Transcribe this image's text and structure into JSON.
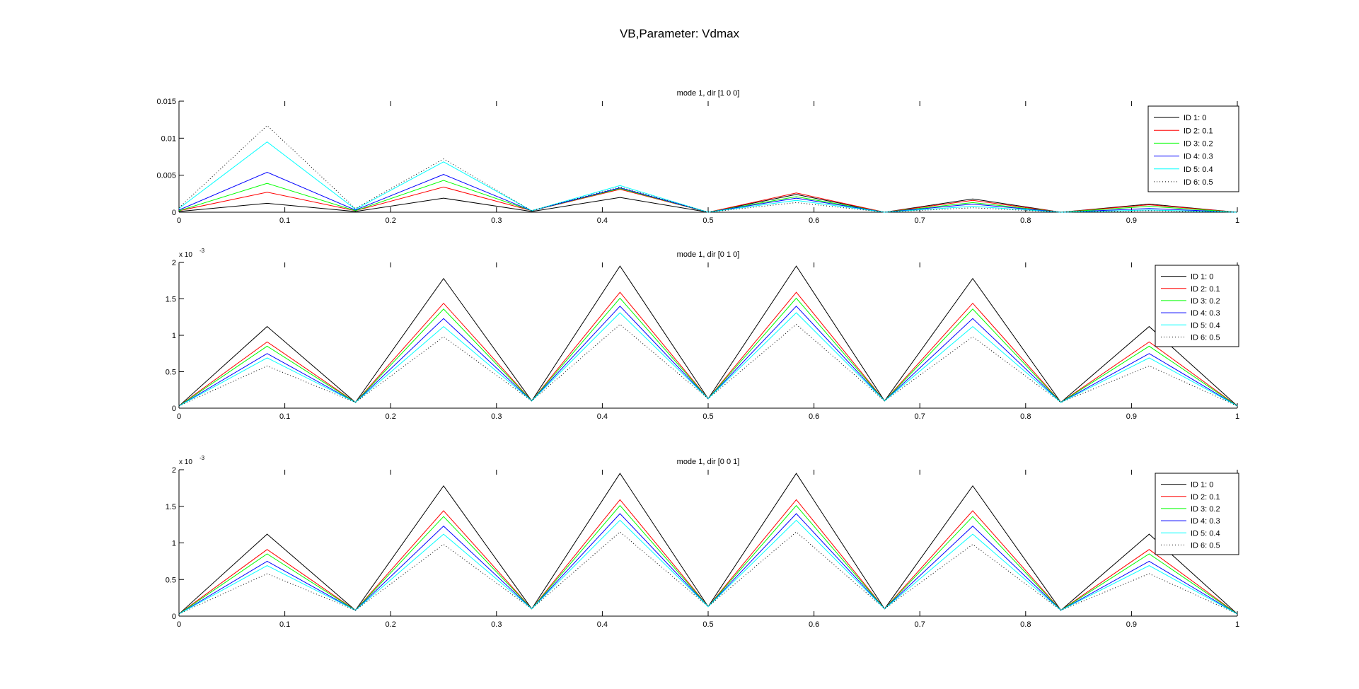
{
  "figure": {
    "title": "VB,Parameter: Vdmax"
  },
  "chart_data": [
    {
      "type": "line",
      "title": "mode 1, dir [1 0 0]",
      "xlim": [
        0,
        1
      ],
      "ylim": [
        0,
        0.015
      ],
      "xticks": [
        "0",
        "0.1",
        "0.2",
        "0.3",
        "0.4",
        "0.5",
        "0.6",
        "0.7",
        "0.8",
        "0.9",
        "1"
      ],
      "yticks": [
        "0",
        "0.005",
        "0.01",
        "0.015"
      ],
      "exponent_label": "",
      "legend_position": "top-right",
      "x": [
        0,
        0.0833,
        0.1667,
        0.25,
        0.3333,
        0.4167,
        0.5,
        0.5833,
        0.6667,
        0.75,
        0.8333,
        0.9167,
        1
      ],
      "series": [
        {
          "name": "ID 1: 0",
          "color": "#000000",
          "dash": "solid",
          "values": [
            0.0001,
            0.0012,
            0.0001,
            0.0019,
            0.0001,
            0.002,
            0.0,
            0.0024,
            0.0,
            0.0018,
            0.0,
            0.0011,
            0.0
          ]
        },
        {
          "name": "ID 2: 0.1",
          "color": "#ff0000",
          "dash": "solid",
          "values": [
            0.0002,
            0.0027,
            0.0002,
            0.0034,
            0.0002,
            0.0031,
            0.0,
            0.0026,
            0.0,
            0.0016,
            0.0,
            0.001,
            0.0
          ]
        },
        {
          "name": "ID 3: 0.2",
          "color": "#00ff00",
          "dash": "solid",
          "values": [
            0.0002,
            0.0039,
            0.0002,
            0.0043,
            0.0002,
            0.0032,
            0.0,
            0.0021,
            0.0,
            0.0013,
            0.0,
            0.0008,
            0.0
          ]
        },
        {
          "name": "ID 4: 0.3",
          "color": "#0000ff",
          "dash": "solid",
          "values": [
            0.0003,
            0.0054,
            0.0003,
            0.0051,
            0.0002,
            0.0033,
            0.0,
            0.0019,
            0.0,
            0.0011,
            0.0,
            0.0005,
            0.0
          ]
        },
        {
          "name": "ID 5: 0.4",
          "color": "#00ffff",
          "dash": "solid",
          "values": [
            0.0005,
            0.0095,
            0.0004,
            0.0068,
            0.0002,
            0.0036,
            0.0,
            0.0016,
            0.0,
            0.0008,
            0.0,
            0.0003,
            0.0
          ]
        },
        {
          "name": "ID 6: 0.5",
          "color": "#000000",
          "dash": "dotted",
          "values": [
            0.0006,
            0.0117,
            0.0005,
            0.0072,
            0.0002,
            0.0034,
            0.0,
            0.0013,
            0.0,
            0.0006,
            0.0,
            0.0002,
            0.0
          ]
        }
      ]
    },
    {
      "type": "line",
      "title": "mode 1, dir [0 1 0]",
      "xlim": [
        0,
        1
      ],
      "ylim": [
        0,
        2
      ],
      "xticks": [
        "0",
        "0.1",
        "0.2",
        "0.3",
        "0.4",
        "0.5",
        "0.6",
        "0.7",
        "0.8",
        "0.9",
        "1"
      ],
      "yticks": [
        "0",
        "0.5",
        "1",
        "1.5",
        "2"
      ],
      "exponent_label": "x 10",
      "exponent_power": "-3",
      "legend_position": "top-right",
      "x": [
        0,
        0.0833,
        0.1667,
        0.25,
        0.3333,
        0.4167,
        0.5,
        0.5833,
        0.6667,
        0.75,
        0.8333,
        0.9167,
        1
      ],
      "series": [
        {
          "name": "ID 1: 0",
          "color": "#000000",
          "dash": "solid",
          "values": [
            0.03,
            1.12,
            0.08,
            1.78,
            0.1,
            1.95,
            0.13,
            1.95,
            0.1,
            1.78,
            0.08,
            1.12,
            0.03
          ]
        },
        {
          "name": "ID 2: 0.1",
          "color": "#ff0000",
          "dash": "solid",
          "values": [
            0.03,
            0.91,
            0.08,
            1.44,
            0.1,
            1.59,
            0.13,
            1.59,
            0.1,
            1.44,
            0.08,
            0.91,
            0.03
          ]
        },
        {
          "name": "ID 3: 0.2",
          "color": "#00ff00",
          "dash": "solid",
          "values": [
            0.03,
            0.85,
            0.08,
            1.36,
            0.1,
            1.51,
            0.13,
            1.51,
            0.1,
            1.36,
            0.08,
            0.85,
            0.03
          ]
        },
        {
          "name": "ID 4: 0.3",
          "color": "#0000ff",
          "dash": "solid",
          "values": [
            0.03,
            0.75,
            0.08,
            1.23,
            0.1,
            1.4,
            0.13,
            1.4,
            0.1,
            1.23,
            0.08,
            0.75,
            0.03
          ]
        },
        {
          "name": "ID 5: 0.4",
          "color": "#00ffff",
          "dash": "solid",
          "values": [
            0.03,
            0.69,
            0.08,
            1.12,
            0.1,
            1.31,
            0.13,
            1.31,
            0.1,
            1.12,
            0.08,
            0.69,
            0.03
          ]
        },
        {
          "name": "ID 6: 0.5",
          "color": "#000000",
          "dash": "dotted",
          "values": [
            0.03,
            0.58,
            0.08,
            0.98,
            0.1,
            1.15,
            0.13,
            1.15,
            0.1,
            0.98,
            0.08,
            0.58,
            0.03
          ]
        }
      ]
    },
    {
      "type": "line",
      "title": "mode 1, dir [0 0 1]",
      "xlim": [
        0,
        1
      ],
      "ylim": [
        0,
        2
      ],
      "xticks": [
        "0",
        "0.1",
        "0.2",
        "0.3",
        "0.4",
        "0.5",
        "0.6",
        "0.7",
        "0.8",
        "0.9",
        "1"
      ],
      "yticks": [
        "0",
        "0.5",
        "1",
        "1.5",
        "2"
      ],
      "exponent_label": "x 10",
      "exponent_power": "-3",
      "legend_position": "top-right",
      "x": [
        0,
        0.0833,
        0.1667,
        0.25,
        0.3333,
        0.4167,
        0.5,
        0.5833,
        0.6667,
        0.75,
        0.8333,
        0.9167,
        1
      ],
      "series": [
        {
          "name": "ID 1: 0",
          "color": "#000000",
          "dash": "solid",
          "values": [
            0.03,
            1.12,
            0.08,
            1.78,
            0.1,
            1.95,
            0.13,
            1.95,
            0.1,
            1.78,
            0.08,
            1.12,
            0.03
          ]
        },
        {
          "name": "ID 2: 0.1",
          "color": "#ff0000",
          "dash": "solid",
          "values": [
            0.03,
            0.91,
            0.08,
            1.44,
            0.1,
            1.59,
            0.13,
            1.59,
            0.1,
            1.44,
            0.08,
            0.91,
            0.03
          ]
        },
        {
          "name": "ID 3: 0.2",
          "color": "#00ff00",
          "dash": "solid",
          "values": [
            0.03,
            0.85,
            0.08,
            1.36,
            0.1,
            1.51,
            0.13,
            1.51,
            0.1,
            1.36,
            0.08,
            0.85,
            0.03
          ]
        },
        {
          "name": "ID 4: 0.3",
          "color": "#0000ff",
          "dash": "solid",
          "values": [
            0.03,
            0.75,
            0.08,
            1.23,
            0.1,
            1.4,
            0.13,
            1.4,
            0.1,
            1.23,
            0.08,
            0.75,
            0.03
          ]
        },
        {
          "name": "ID 5: 0.4",
          "color": "#00ffff",
          "dash": "solid",
          "values": [
            0.03,
            0.69,
            0.08,
            1.12,
            0.1,
            1.31,
            0.13,
            1.31,
            0.1,
            1.12,
            0.08,
            0.69,
            0.03
          ]
        },
        {
          "name": "ID 6: 0.5",
          "color": "#000000",
          "dash": "dotted",
          "values": [
            0.03,
            0.58,
            0.08,
            0.98,
            0.1,
            1.15,
            0.13,
            1.15,
            0.1,
            0.98,
            0.08,
            0.58,
            0.03
          ]
        }
      ]
    }
  ]
}
